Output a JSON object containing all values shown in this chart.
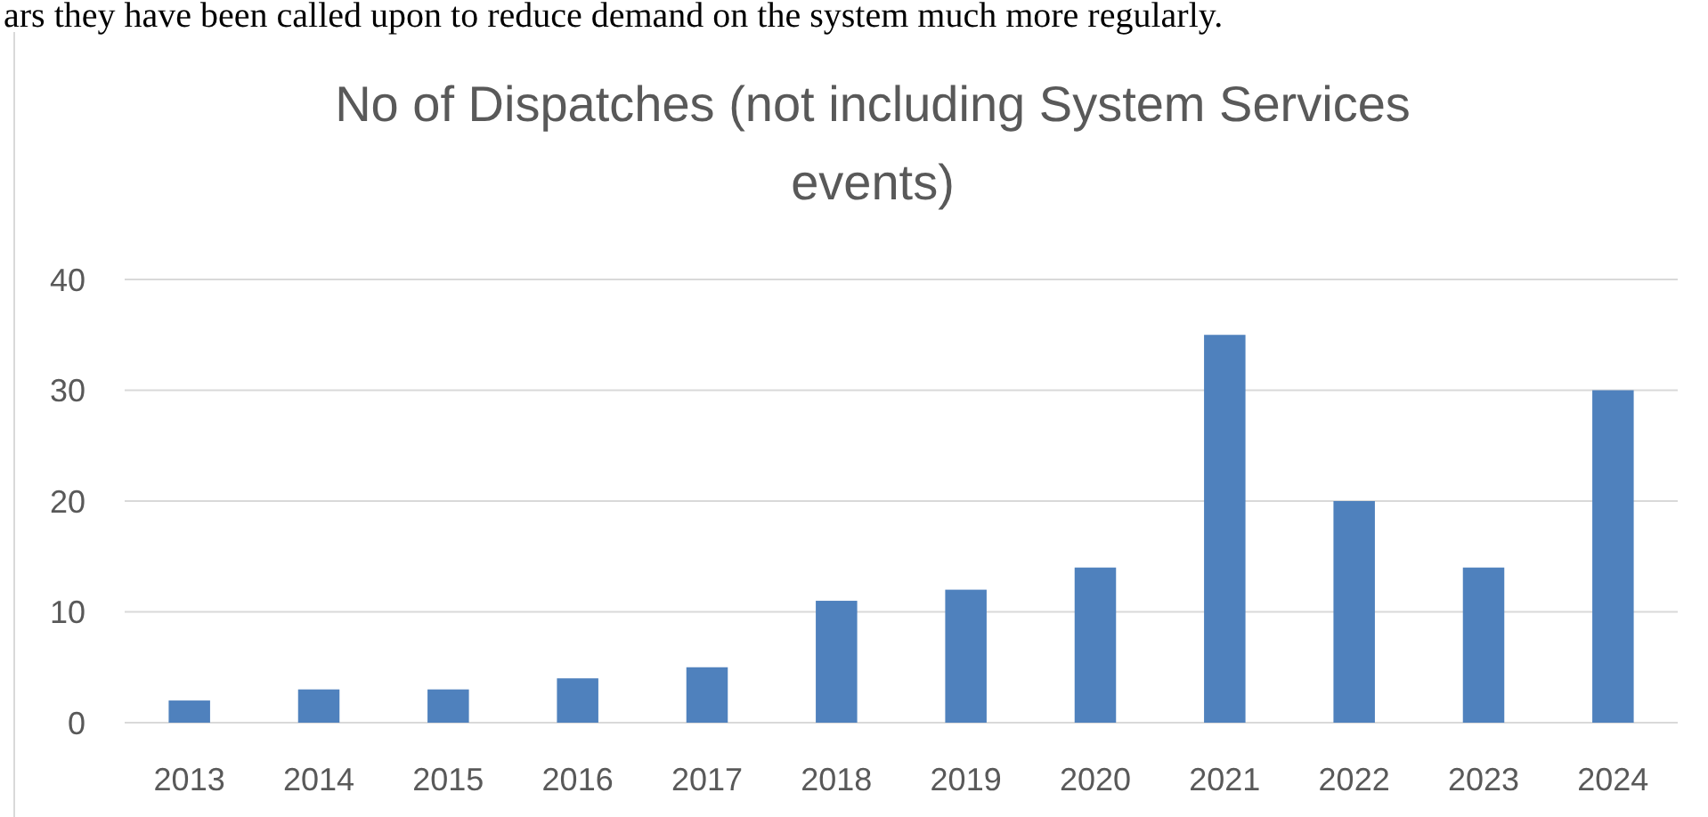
{
  "chart_data": {
    "type": "bar",
    "title": "No of Dispatches (not including System Services events)",
    "categories": [
      "2013",
      "2014",
      "2015",
      "2016",
      "2017",
      "2018",
      "2019",
      "2020",
      "2021",
      "2022",
      "2023",
      "2024"
    ],
    "values": [
      2,
      3,
      3,
      4,
      5,
      11,
      12,
      14,
      35,
      20,
      14,
      30
    ],
    "color": "#4f81bd",
    "ylim": [
      0,
      40
    ],
    "yticks": [
      0,
      10,
      20,
      30,
      40
    ],
    "grid": "y",
    "annotations": [
      "ars they have been called upon to reduce demand on the system much more regularly."
    ]
  }
}
